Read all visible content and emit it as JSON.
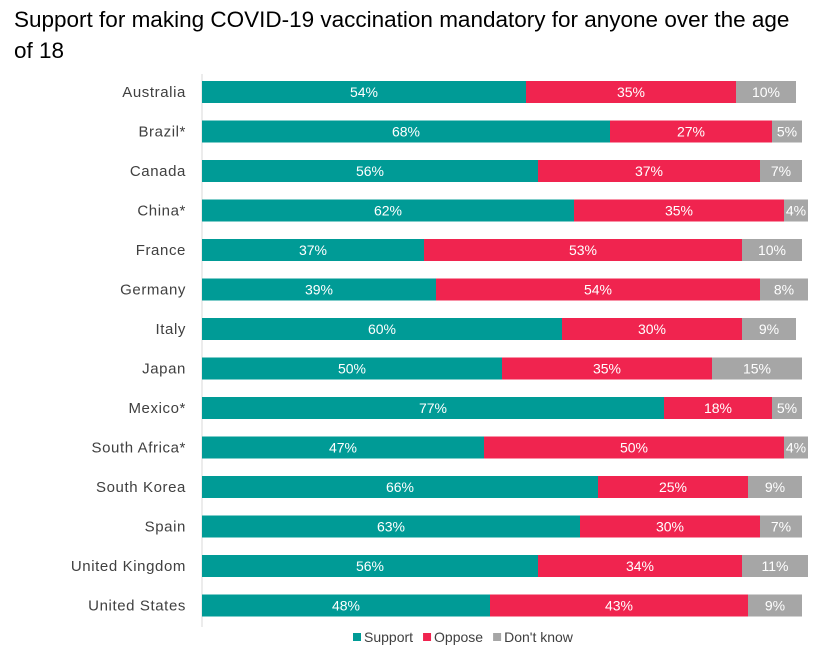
{
  "chart_data": {
    "type": "bar",
    "orientation": "horizontal",
    "stacked": true,
    "title": "Support for making COVID-19 vaccination mandatory for anyone over the age of 18",
    "categories": [
      "Australia",
      "Brazil*",
      "Canada",
      "China*",
      "France",
      "Germany",
      "Italy",
      "Japan",
      "Mexico*",
      "South Africa*",
      "South Korea",
      "Spain",
      "United Kingdom",
      "United States"
    ],
    "series": [
      {
        "name": "Support",
        "color": "#009b96",
        "values": [
          54,
          68,
          56,
          62,
          37,
          39,
          60,
          50,
          77,
          47,
          66,
          63,
          56,
          48
        ]
      },
      {
        "name": "Oppose",
        "color": "#f0244f",
        "values": [
          35,
          27,
          37,
          35,
          53,
          54,
          30,
          35,
          18,
          50,
          25,
          30,
          34,
          43
        ]
      },
      {
        "name": "Don't know",
        "color": "#a6a6a6",
        "values": [
          10,
          5,
          7,
          4,
          10,
          8,
          9,
          15,
          5,
          4,
          9,
          7,
          11,
          9
        ]
      }
    ],
    "value_suffix": "%",
    "xlim": [
      0,
      100
    ],
    "grid": false,
    "legend_position": "bottom"
  }
}
